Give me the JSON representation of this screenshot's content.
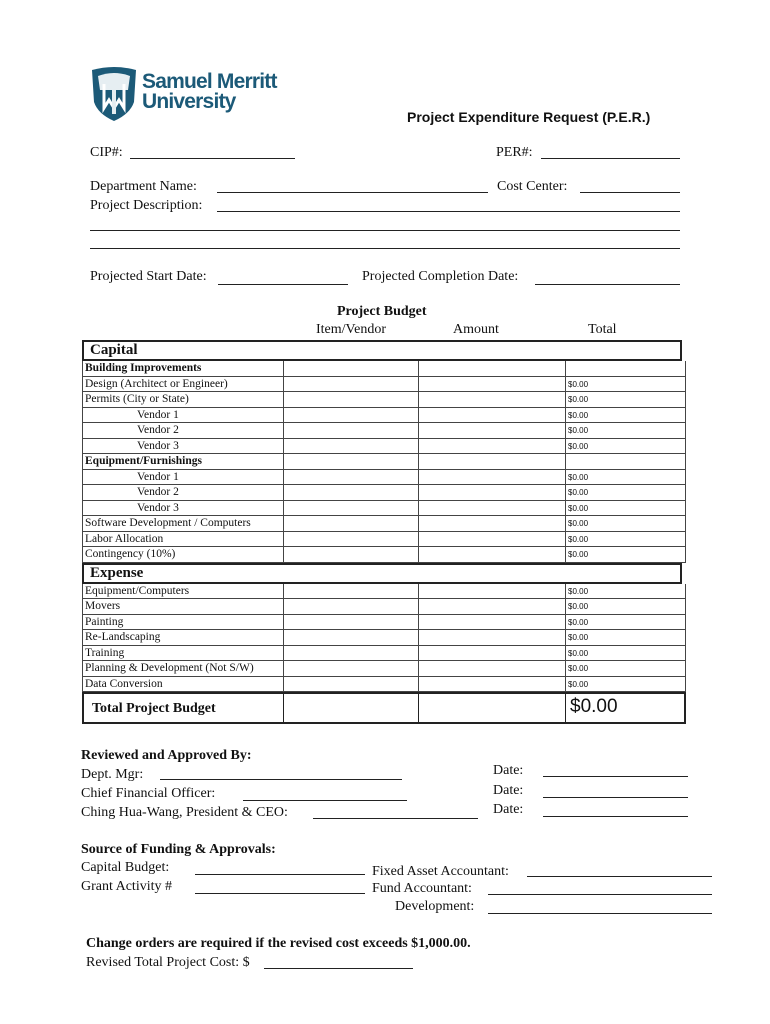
{
  "logo": {
    "text_line1": "Samuel Merritt",
    "text_line2": "University",
    "color": "#1c5a78"
  },
  "title": "Project Expenditure Request (P.E.R.)",
  "fields": {
    "cip": "CIP#:",
    "per": "PER#:",
    "department": "Department Name:",
    "cost_center": "Cost Center:",
    "description": "Project Description:",
    "start_date": "Projected Start Date:",
    "completion_date": "Projected Completion Date:"
  },
  "budget": {
    "heading": "Project Budget",
    "columns": [
      "Item/Vendor",
      "Amount",
      "Total"
    ],
    "sections": [
      {
        "name": "Capital",
        "rows": [
          {
            "label": "Building Improvements",
            "style": "bold",
            "total": ""
          },
          {
            "label": "Design  (Architect or Engineer)",
            "style": "",
            "total": "$0.00"
          },
          {
            "label": "Permits (City or State)",
            "style": "",
            "total": "$0.00"
          },
          {
            "label": "Vendor 1",
            "style": "indent",
            "total": "$0.00"
          },
          {
            "label": "Vendor 2",
            "style": "indent",
            "total": "$0.00"
          },
          {
            "label": "Vendor 3",
            "style": "indent",
            "total": "$0.00"
          },
          {
            "label": "Equipment/Furnishings",
            "style": "bold",
            "total": ""
          },
          {
            "label": "Vendor 1",
            "style": "indent",
            "total": "$0.00"
          },
          {
            "label": "Vendor 2",
            "style": "indent",
            "total": "$0.00"
          },
          {
            "label": "Vendor 3",
            "style": "indent",
            "total": "$0.00"
          },
          {
            "label": "Software Development / Computers",
            "style": "",
            "total": "$0.00"
          },
          {
            "label": "Labor Allocation",
            "style": "",
            "total": "$0.00"
          },
          {
            "label": "Contingency (10%)",
            "style": "",
            "total": "$0.00"
          }
        ]
      },
      {
        "name": "Expense",
        "rows": [
          {
            "label": "Equipment/Computers",
            "style": "",
            "total": "$0.00"
          },
          {
            "label": "Movers",
            "style": "",
            "total": "$0.00"
          },
          {
            "label": "Painting",
            "style": "",
            "total": "$0.00"
          },
          {
            "label": "Re-Landscaping",
            "style": "",
            "total": "$0.00"
          },
          {
            "label": "Training",
            "style": "",
            "total": "$0.00"
          },
          {
            "label": "Planning & Development (Not S/W)",
            "style": "",
            "total": "$0.00"
          },
          {
            "label": "Data Conversion",
            "style": "",
            "total": "$0.00"
          }
        ]
      }
    ],
    "total_label": "Total Project Budget",
    "total_value": "$0.00"
  },
  "approval": {
    "heading": "Reviewed and Approved By:",
    "dept_mgr": "Dept. Mgr:",
    "cfo": "Chief Financial Officer:",
    "president": "Ching Hua-Wang, President & CEO:",
    "date": "Date:"
  },
  "funding": {
    "heading": "Source of Funding & Approvals:",
    "capital_budget": "Capital Budget:",
    "grant": "Grant Activity #",
    "fixed_asset": "Fixed Asset Accountant:",
    "fund_accountant": "Fund Accountant:",
    "development": "Development:"
  },
  "change_orders": {
    "notice": "Change orders are required if the revised cost exceeds $1,000.00.",
    "revised": "Revised Total Project Cost: $"
  }
}
